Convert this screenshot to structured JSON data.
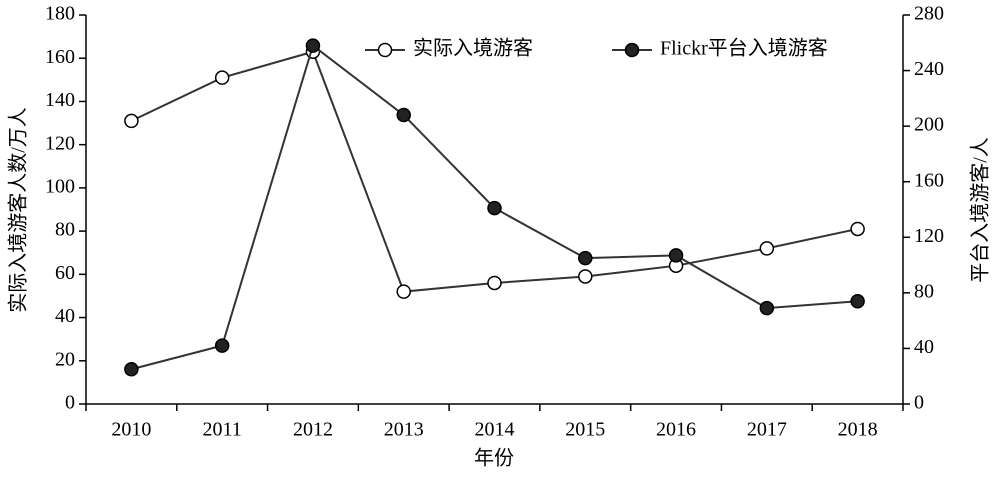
{
  "chart_data": {
    "type": "line",
    "x_label": "年份",
    "y_label": "实际入境游客人数/万人",
    "y2_label": "平台入境游客/人",
    "categories": [
      "2010",
      "2011",
      "2012",
      "2013",
      "2014",
      "2015",
      "2016",
      "2017",
      "2018"
    ],
    "series": [
      {
        "name": "实际入境游客",
        "color": "#ffffff",
        "values": [
          131,
          151,
          163,
          52,
          56,
          59,
          64,
          72,
          81
        ]
      },
      {
        "name": "Flickr平台入境游客",
        "color": "#222222",
        "axis": "y2",
        "values": [
          25,
          42,
          258,
          208,
          141,
          105,
          107,
          69,
          74
        ]
      }
    ],
    "ylim": [
      0,
      180
    ],
    "yticks": [
      0,
      20,
      40,
      60,
      80,
      100,
      120,
      140,
      160,
      180
    ],
    "y2lim": [
      0,
      280
    ],
    "y2ticks": [
      0,
      40,
      80,
      120,
      160,
      200,
      240,
      280
    ],
    "legend": "top-right"
  }
}
